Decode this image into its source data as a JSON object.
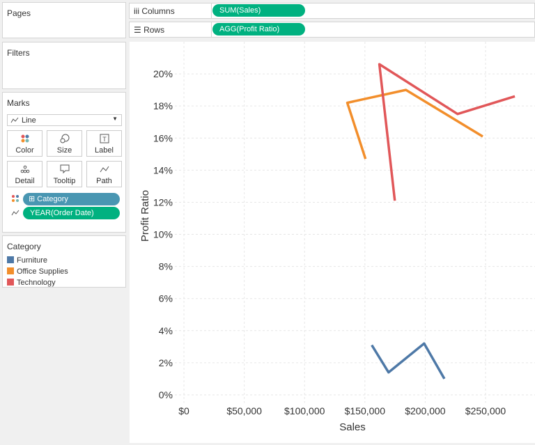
{
  "shelves": {
    "pages": "Pages",
    "filters": "Filters",
    "columns": {
      "label": "Columns",
      "pill": "SUM(Sales)"
    },
    "rows": {
      "label": "Rows",
      "pill": "AGG(Profit Ratio)"
    }
  },
  "marks": {
    "title": "Marks",
    "mark_type": "Line",
    "buttons": [
      "Color",
      "Size",
      "Label",
      "Detail",
      "Tooltip",
      "Path"
    ],
    "pills": [
      "Category",
      "YEAR(Order Date)"
    ]
  },
  "legend_title": "Category",
  "chart_data": {
    "type": "line",
    "x_label": "Sales",
    "y_label": "Profit Ratio",
    "series": [
      {
        "name": "Furniture",
        "color": "#4e79a7",
        "x": [
          155700,
          169600,
          199100,
          215900
        ],
        "values": [
          3.1,
          1.4,
          3.2,
          1.0
        ]
      },
      {
        "name": "Office Supplies",
        "color": "#f28e2b",
        "x": [
          150500,
          135400,
          184000,
          247700
        ],
        "values": [
          14.7,
          18.2,
          19.0,
          16.1
        ]
      },
      {
        "name": "Technology",
        "color": "#e15759",
        "x": [
          174800,
          162000,
          226800,
          274300
        ],
        "values": [
          12.1,
          20.6,
          17.5,
          18.6
        ]
      }
    ],
    "xlim": [
      -11000,
      291000
    ],
    "xticks": [
      {
        "value": 0,
        "label": "$0"
      },
      {
        "value": 50000,
        "label": "$50,000"
      },
      {
        "value": 100000,
        "label": "$100,000"
      },
      {
        "value": 150000,
        "label": "$150,000"
      },
      {
        "value": 200000,
        "label": "$200,000"
      },
      {
        "value": 250000,
        "label": "$250,000"
      }
    ],
    "ylim": [
      -0.5,
      22
    ],
    "yticks": [
      {
        "value": 0,
        "label": "0%"
      },
      {
        "value": 2,
        "label": "2%"
      },
      {
        "value": 4,
        "label": "4%"
      },
      {
        "value": 6,
        "label": "6%"
      },
      {
        "value": 8,
        "label": "8%"
      },
      {
        "value": 10,
        "label": "10%"
      },
      {
        "value": 12,
        "label": "12%"
      },
      {
        "value": 14,
        "label": "14%"
      },
      {
        "value": 16,
        "label": "16%"
      },
      {
        "value": 18,
        "label": "18%"
      },
      {
        "value": 20,
        "label": "20%"
      }
    ],
    "grid": true
  }
}
